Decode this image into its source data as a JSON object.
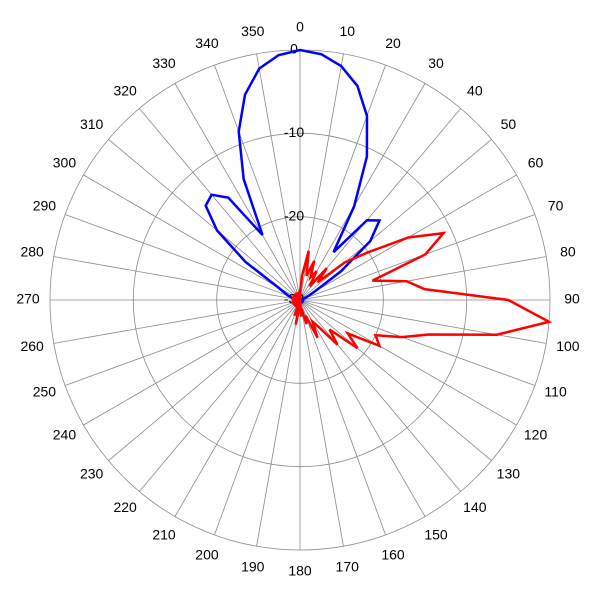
{
  "chart_data": {
    "type": "polar",
    "theta": [
      0,
      5,
      10,
      15,
      20,
      25,
      30,
      35,
      40,
      45,
      50,
      55,
      60,
      65,
      70,
      75,
      80,
      85,
      90,
      95,
      100,
      105,
      110,
      115,
      120,
      125,
      130,
      135,
      140,
      145,
      150,
      155,
      160,
      165,
      170,
      175,
      180,
      185,
      190,
      195,
      200,
      205,
      210,
      215,
      220,
      225,
      230,
      235,
      240,
      245,
      250,
      255,
      260,
      265,
      270,
      275,
      280,
      285,
      290,
      295,
      300,
      305,
      310,
      315,
      320,
      325,
      330,
      335,
      340,
      345,
      350,
      355
    ],
    "series": [
      {
        "color": "#0000ff",
        "values": [
          0,
          -0.4,
          -1.5,
          -3.4,
          -6.5,
          -11,
          -17,
          -23,
          -17.5,
          -16.5,
          -19,
          -24,
          -28,
          -29,
          -29.5,
          -30,
          -29.5,
          -30,
          -29.5,
          -30,
          -29.5,
          -30,
          -29.5,
          -30,
          -29.5,
          -30,
          -29.5,
          -30,
          -29.5,
          -30,
          -29.5,
          -30,
          -29.5,
          -30,
          -29.5,
          -30,
          -29.5,
          -30,
          -29.5,
          -30,
          -29.5,
          -30,
          -29.5,
          -30,
          -29.5,
          -30,
          -29.5,
          -30,
          -29.5,
          -30,
          -29.5,
          -30,
          -29.5,
          -30,
          -29.5,
          -30,
          -29.5,
          -29,
          -28.5,
          -28,
          -27,
          -22,
          -17,
          -14,
          -13.5,
          -15,
          -21,
          -14,
          -8.5,
          -4.5,
          -1.8,
          -0.5
        ]
      },
      {
        "color": "#ff0000",
        "values": [
          -29,
          -27,
          -24,
          -27,
          -25,
          -27,
          -26,
          -28,
          -25,
          -27,
          -23,
          -20,
          -15,
          -11,
          -14,
          -21,
          -17,
          -15,
          -5,
          0,
          -6,
          -14,
          -17,
          -20,
          -19,
          -23,
          -21,
          -25,
          -23,
          -26,
          -27,
          -25,
          -28,
          -27,
          -29,
          -28,
          -30,
          -29,
          -27,
          -30,
          -28,
          -30,
          -29,
          -30,
          -29,
          -30,
          -29,
          -30,
          -29,
          -30,
          -29,
          -30,
          -29,
          -30,
          -29,
          -30,
          -29,
          -30,
          -29,
          -30,
          -29,
          -30,
          -29,
          -30,
          -29,
          -30,
          -29,
          -30,
          -29,
          -30,
          -29,
          -30
        ]
      }
    ],
    "rlim": [
      -30,
      0
    ],
    "rticks": [
      -30,
      -20,
      -10,
      0
    ],
    "thetaticks": [
      0,
      10,
      20,
      30,
      40,
      50,
      60,
      70,
      80,
      90,
      100,
      110,
      120,
      130,
      140,
      150,
      160,
      170,
      180,
      190,
      200,
      210,
      220,
      230,
      240,
      250,
      260,
      270,
      280,
      290,
      300,
      310,
      320,
      330,
      340,
      350
    ],
    "grid": true
  }
}
